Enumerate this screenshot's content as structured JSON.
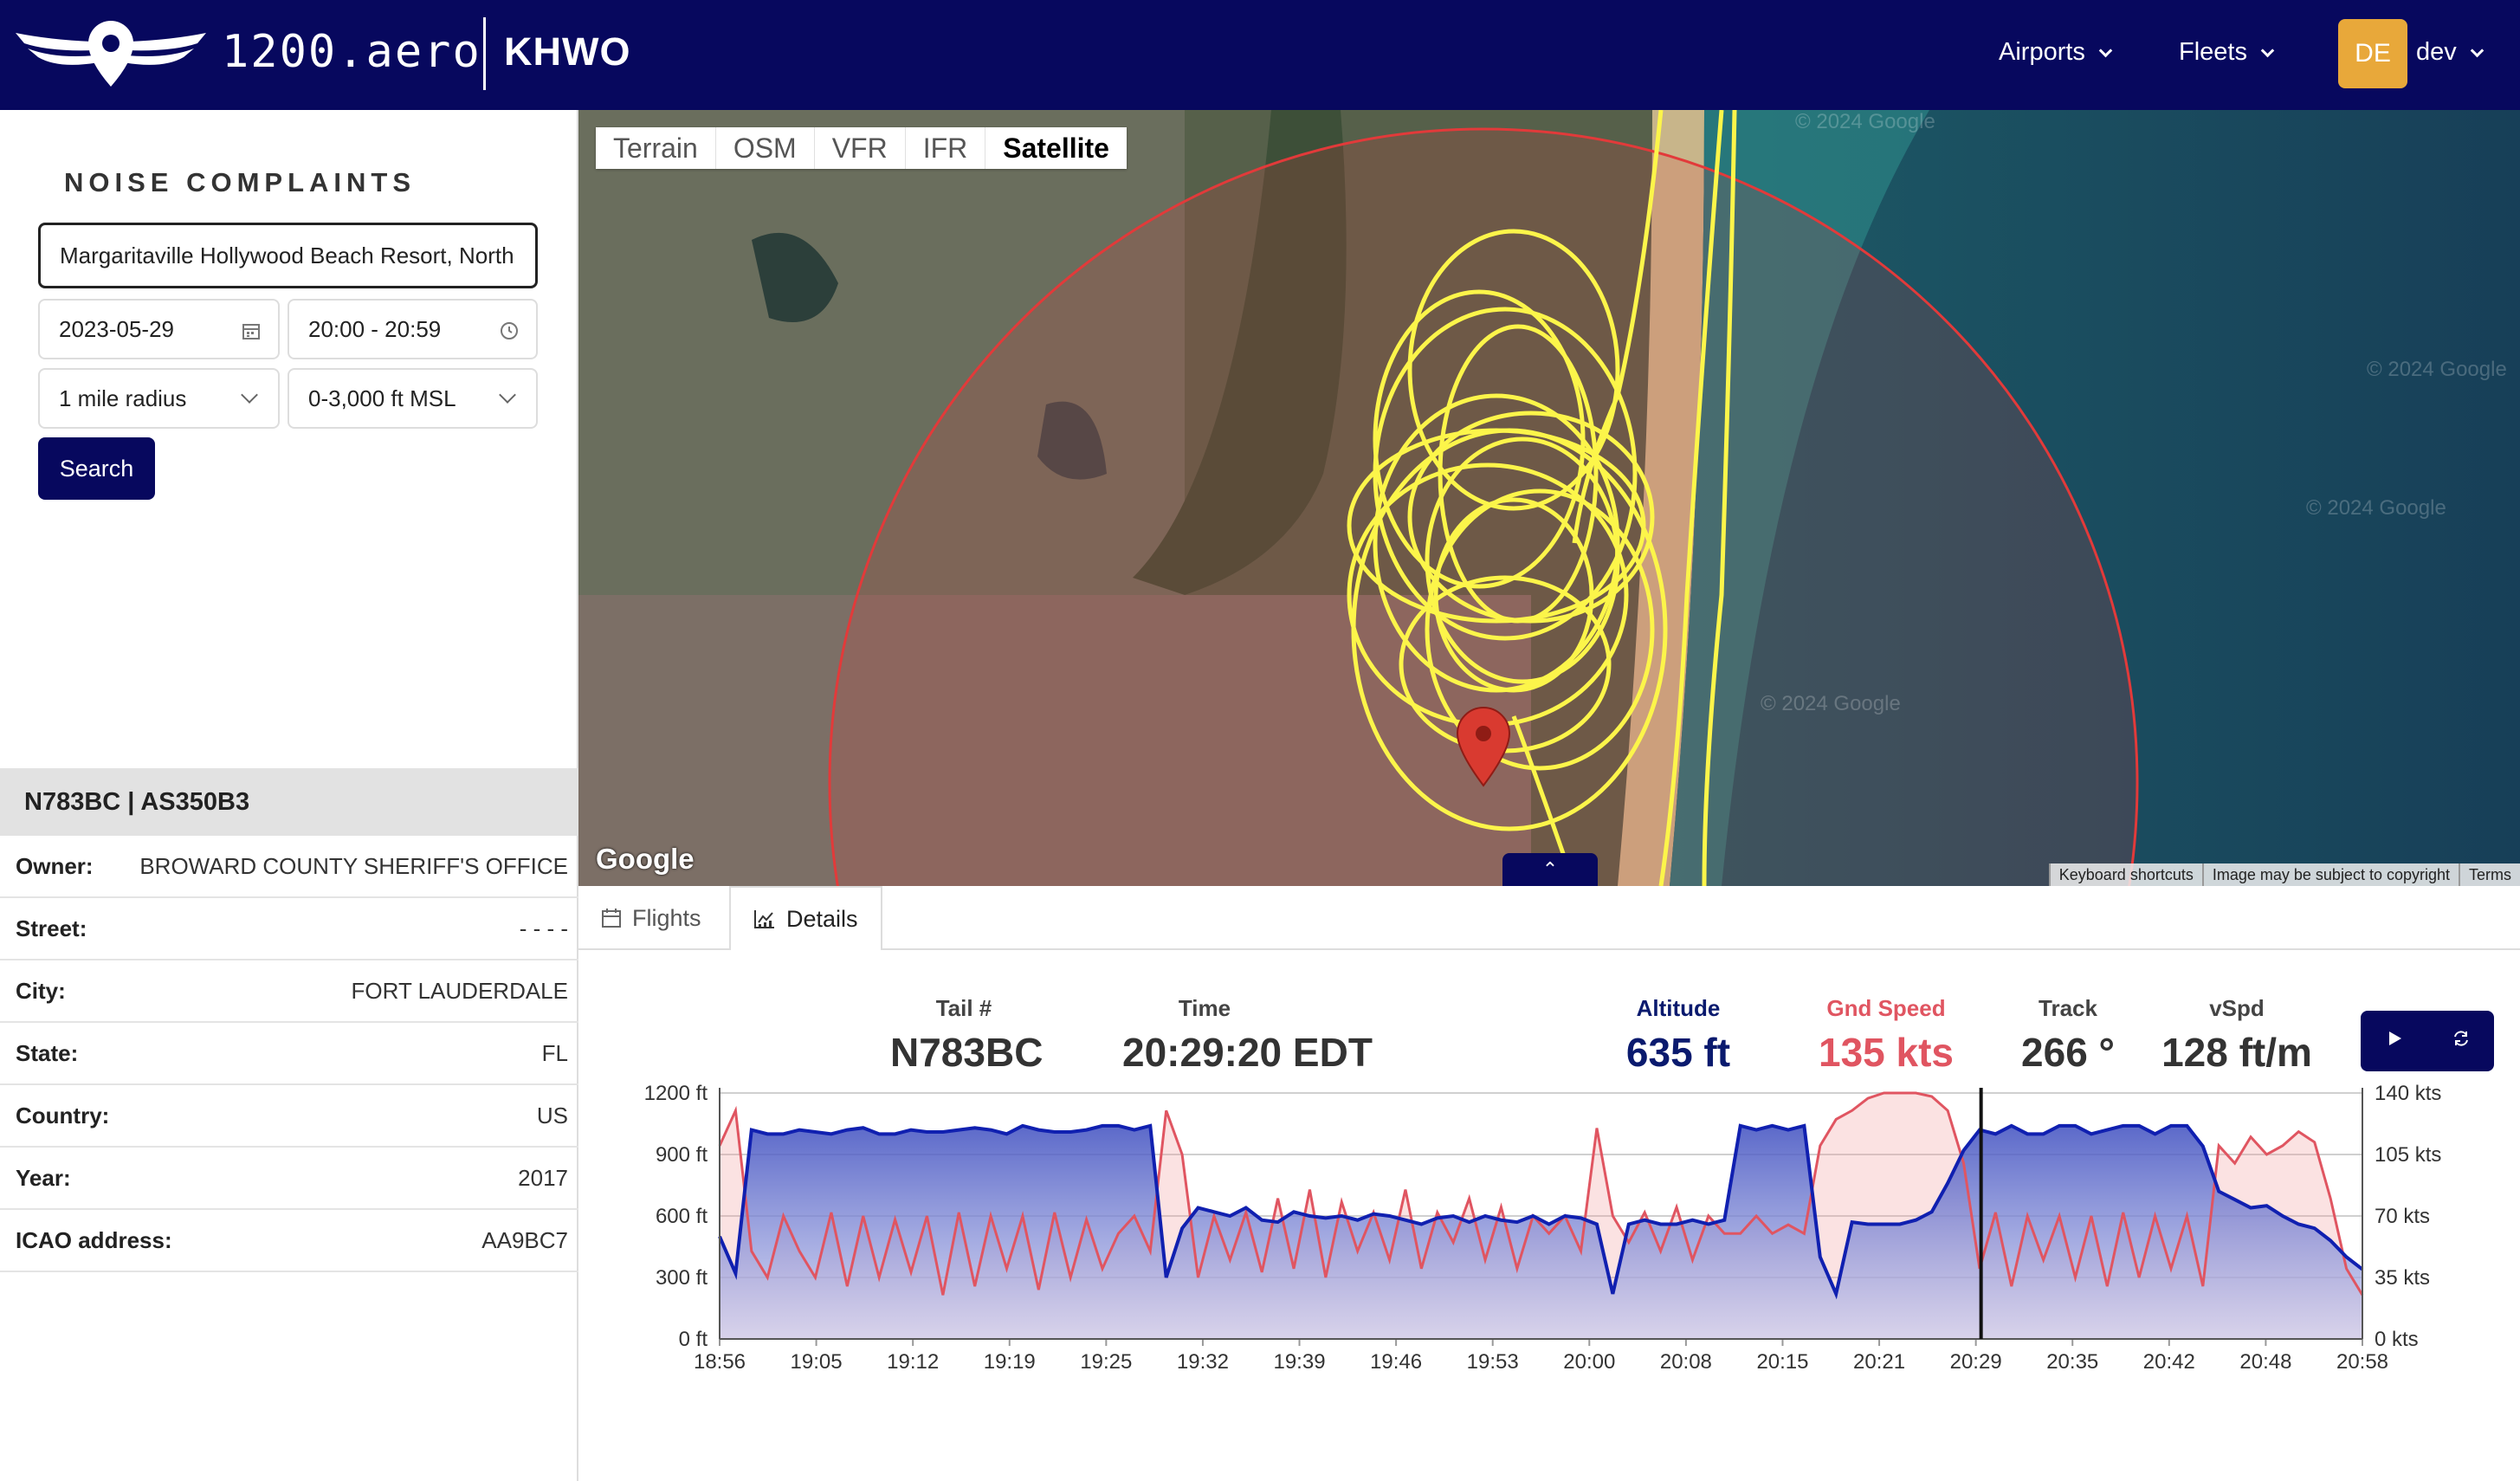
{
  "header": {
    "brand": "1200.aero",
    "airport": "KHWO",
    "nav": [
      {
        "label": "Airports"
      },
      {
        "label": "Fleets"
      }
    ],
    "avatar_initials": "DE",
    "username": "dev",
    "colors": {
      "navy": "#07085e",
      "avatar": "#e8a83a"
    }
  },
  "search_panel": {
    "title": "NOISE COMPLAINTS",
    "address": "Margaritaville Hollywood Beach Resort, North",
    "date": "2023-05-29",
    "time_range": "20:00 - 20:59",
    "radius": "1 mile radius",
    "altitude": "0-3,000 ft MSL",
    "search_label": "Search"
  },
  "aircraft": {
    "header": "N783BC | AS350B3",
    "rows": [
      {
        "key": "Owner:",
        "value": "BROWARD COUNTY SHERIFF'S OFFICE"
      },
      {
        "key": "Street:",
        "value": "- - - -"
      },
      {
        "key": "City:",
        "value": "FORT LAUDERDALE"
      },
      {
        "key": "State:",
        "value": "FL"
      },
      {
        "key": "Country:",
        "value": "US"
      },
      {
        "key": "Year:",
        "value": "2017"
      },
      {
        "key": "ICAO address:",
        "value": "AA9BC7"
      }
    ]
  },
  "map": {
    "layers": [
      "Terrain",
      "OSM",
      "VFR",
      "IFR",
      "Satellite"
    ],
    "active_layer": "Satellite",
    "google": "Google",
    "watermark": "© 2024 Google",
    "attribution": [
      "Keyboard shortcuts",
      "Image may be subject to copyright",
      "Terms"
    ],
    "collapse_icon": "chevron-up-icon"
  },
  "tabs": [
    {
      "label": "Flights",
      "icon": "calendar-icon"
    },
    {
      "label": "Details",
      "icon": "chart-icon"
    }
  ],
  "stats": {
    "tail": {
      "label": "Tail #",
      "value": "N783BC"
    },
    "time": {
      "label": "Time",
      "value": "20:29:20 EDT"
    },
    "altitude": {
      "label": "Altitude",
      "value": "635 ft",
      "color": "#0a1a6e"
    },
    "speed": {
      "label": "Gnd Speed",
      "value": "135 kts",
      "color": "#e05561"
    },
    "track": {
      "label": "Track",
      "value": "266 °"
    },
    "vspd": {
      "label": "vSpd",
      "value": "128 ft/m"
    }
  },
  "chart_data": {
    "type": "area",
    "x_ticks": [
      "18:56",
      "19:05",
      "19:12",
      "19:19",
      "19:25",
      "19:32",
      "19:39",
      "19:46",
      "19:53",
      "20:00",
      "20:08",
      "20:15",
      "20:21",
      "20:29",
      "20:35",
      "20:42",
      "20:48",
      "20:58"
    ],
    "y_left": {
      "ticks": [
        "0 ft",
        "300 ft",
        "600 ft",
        "900 ft",
        "1200 ft"
      ],
      "range": [
        0,
        1200
      ]
    },
    "y_right": {
      "ticks": [
        "0 kts",
        "35 kts",
        "70 kts",
        "105 kts",
        "140 kts"
      ],
      "range": [
        0,
        140
      ]
    },
    "cursor_time": "20:29",
    "series": [
      {
        "key": "altitude",
        "color": "#1020b0",
        "values": [
          500,
          320,
          1020,
          1000,
          1000,
          1020,
          1010,
          1000,
          1020,
          1030,
          1000,
          1000,
          1020,
          1010,
          1010,
          1020,
          1030,
          1020,
          1000,
          1040,
          1020,
          1010,
          1010,
          1020,
          1040,
          1040,
          1020,
          1040,
          300,
          540,
          640,
          620,
          600,
          640,
          580,
          570,
          620,
          600,
          590,
          600,
          580,
          610,
          600,
          580,
          560,
          590,
          600,
          570,
          600,
          580,
          570,
          600,
          560,
          600,
          590,
          560,
          220,
          560,
          580,
          560,
          560,
          580,
          560,
          580,
          1040,
          1020,
          1040,
          1020,
          1040,
          400,
          220,
          570,
          560,
          560,
          560,
          580,
          620,
          760,
          920,
          1020,
          1000,
          1040,
          1000,
          1000,
          1040,
          1040,
          1000,
          1020,
          1040,
          1040,
          1000,
          1040,
          1040,
          940,
          720,
          680,
          640,
          650,
          600,
          560,
          540,
          480,
          400,
          340
        ]
      },
      {
        "key": "ground_speed",
        "color": "#e05561",
        "values": [
          110,
          130,
          50,
          35,
          70,
          50,
          35,
          72,
          30,
          70,
          35,
          68,
          38,
          70,
          25,
          72,
          30,
          70,
          40,
          70,
          28,
          72,
          35,
          68,
          40,
          60,
          70,
          50,
          130,
          105,
          35,
          70,
          45,
          72,
          38,
          80,
          40,
          85,
          35,
          78,
          50,
          72,
          45,
          85,
          40,
          72,
          55,
          80,
          45,
          75,
          40,
          70,
          60,
          70,
          50,
          120,
          70,
          55,
          72,
          50,
          75,
          45,
          70,
          60,
          60,
          70,
          60,
          65,
          60,
          110,
          125,
          130,
          137,
          140,
          140,
          140,
          138,
          130,
          100,
          40,
          72,
          30,
          70,
          45,
          70,
          35,
          70,
          30,
          72,
          35,
          70,
          40,
          70,
          30,
          110,
          100,
          115,
          105,
          110,
          118,
          112,
          80,
          40,
          25
        ]
      }
    ]
  }
}
